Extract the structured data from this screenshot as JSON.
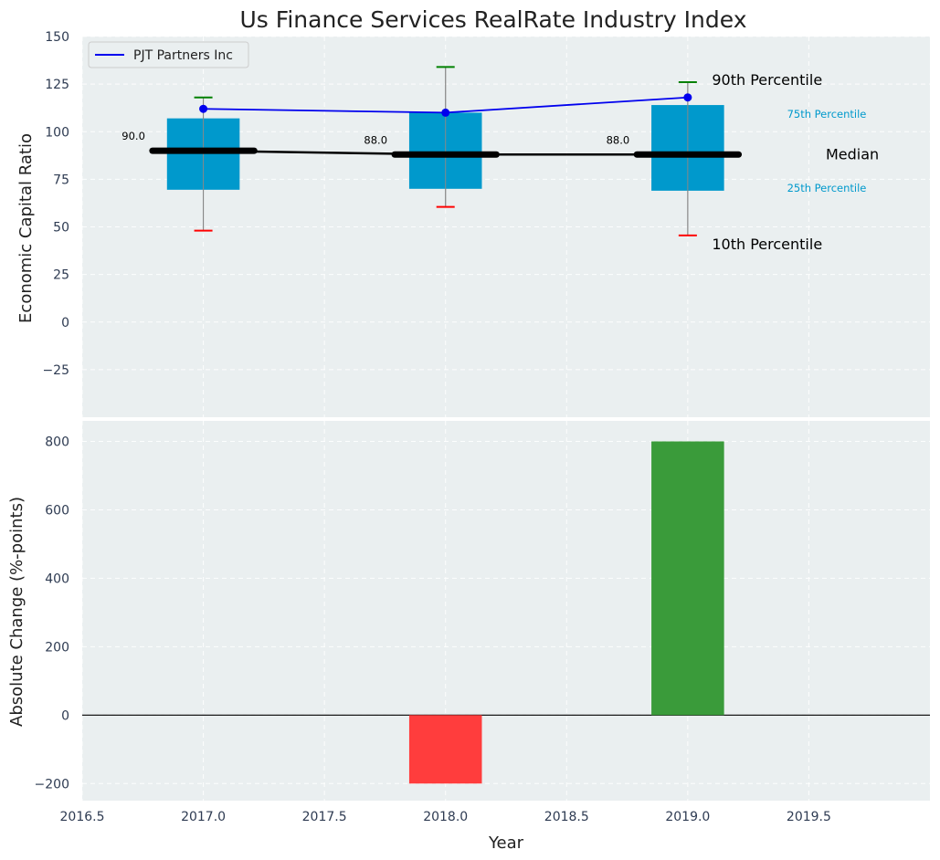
{
  "chart_data": [
    {
      "type": "box",
      "title": "Us Finance Services RealRate Industry Index",
      "ylabel": "Economic Capital Ratio",
      "ylim": [
        -50,
        150
      ],
      "yticks": [
        -25,
        0,
        25,
        50,
        75,
        100,
        125,
        150
      ],
      "xlim": [
        2016.5,
        2020.0
      ],
      "years": [
        2017,
        2018,
        2019
      ],
      "p10": [
        48,
        60.5,
        45.5
      ],
      "p25": [
        69.5,
        70,
        69
      ],
      "median": [
        90,
        88,
        88
      ],
      "p75": [
        107,
        110,
        114
      ],
      "p90": [
        118,
        134,
        126
      ],
      "median_labels": [
        "90.0",
        "88.0",
        "88.0"
      ],
      "series": [
        {
          "name": "PJT Partners Inc",
          "values": [
            112,
            110,
            118
          ],
          "color": "#0000ee"
        }
      ],
      "annotations": {
        "p90": "90th Percentile",
        "p75": "75th Percentile",
        "median": "Median",
        "p25": "25th Percentile",
        "p10": "10th Percentile"
      },
      "legend": "top-left"
    },
    {
      "type": "bar",
      "xlabel": "Year",
      "ylabel": "Absolute Change (%-points)",
      "ylim": [
        -250,
        860
      ],
      "yticks": [
        -200,
        0,
        200,
        400,
        600,
        800
      ],
      "xticks": [
        2016.5,
        2017.0,
        2017.5,
        2018.0,
        2018.5,
        2019.0,
        2019.5
      ],
      "xtick_labels": [
        "2016.5",
        "2017.0",
        "2017.5",
        "2018.0",
        "2018.5",
        "2019.0",
        "2019.5"
      ],
      "x": [
        2018,
        2019
      ],
      "values": [
        -200,
        800
      ]
    }
  ],
  "colors": {
    "background": "#eaeff0",
    "box": "#0099cc",
    "median": "#000000",
    "p90_cap": "#008000",
    "p10_cap": "#ff0000",
    "whisker": "#888888",
    "series": "#0000ee",
    "positive_bar": "#3a9b3a",
    "negative_bar": "#ff3d3d",
    "percentile_label": "#0099cc"
  }
}
